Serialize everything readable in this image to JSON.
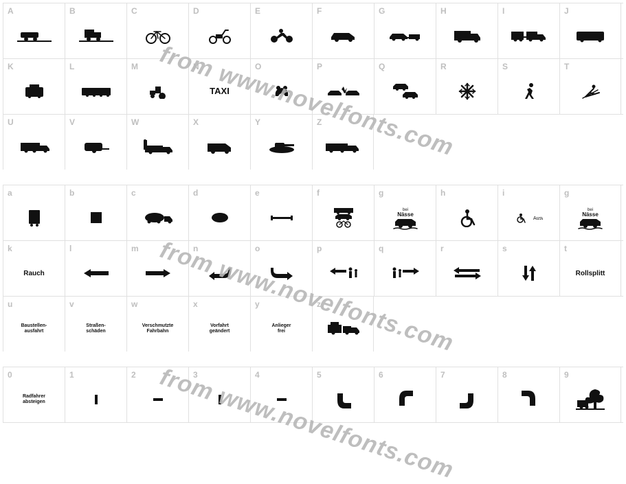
{
  "watermark_text": "from www.novelfonts.com",
  "grid": {
    "cell_border_color": "#e0e0e0",
    "key_color": "#bfbfbf",
    "glyph_color": "#111111",
    "watermark_color": "#b8b8b8"
  },
  "rows": [
    {
      "cells": [
        {
          "key": "A",
          "icon": "car-edge"
        },
        {
          "key": "B",
          "icon": "truck-edge"
        },
        {
          "key": "C",
          "icon": "bicycle"
        },
        {
          "key": "D",
          "icon": "moped"
        },
        {
          "key": "E",
          "icon": "motorcycle"
        },
        {
          "key": "F",
          "icon": "car"
        },
        {
          "key": "G",
          "icon": "car-trailer"
        },
        {
          "key": "H",
          "icon": "box-truck"
        },
        {
          "key": "I",
          "icon": "truck-trailer"
        },
        {
          "key": "J",
          "icon": "bus"
        }
      ]
    },
    {
      "cells": [
        {
          "key": "K",
          "icon": "tram"
        },
        {
          "key": "L",
          "icon": "streetcar"
        },
        {
          "key": "M",
          "icon": "tractor"
        },
        {
          "key": "N",
          "text": "TAXI",
          "textClass": "med"
        },
        {
          "key": "O",
          "icon": "frog"
        },
        {
          "key": "P",
          "icon": "crash"
        },
        {
          "key": "Q",
          "icon": "cars-passing"
        },
        {
          "key": "R",
          "icon": "snowflake"
        },
        {
          "key": "S",
          "icon": "running"
        },
        {
          "key": "T",
          "icon": "skier"
        }
      ]
    },
    {
      "cells": [
        {
          "key": "U",
          "icon": "container-truck"
        },
        {
          "key": "V",
          "icon": "caravan"
        },
        {
          "key": "W",
          "icon": "info-truck"
        },
        {
          "key": "X",
          "icon": "camper"
        },
        {
          "key": "Y",
          "icon": "tank"
        },
        {
          "key": "Z",
          "icon": "truck-long"
        }
      ]
    },
    {
      "cells": [
        {
          "key": "a",
          "icon": "truck-rear"
        },
        {
          "key": "b",
          "icon": "square"
        },
        {
          "key": "c",
          "icon": "tanker"
        },
        {
          "key": "d",
          "icon": "oval"
        },
        {
          "key": "e",
          "icon": "barrier"
        },
        {
          "key": "f",
          "icon": "vehicles-stack"
        },
        {
          "key": "g",
          "icon": "wet-sign"
        },
        {
          "key": "h",
          "icon": "wheelchair"
        },
        {
          "key": "i",
          "icon": "park-disabled"
        },
        {
          "key": "g",
          "icon": "wet-sign"
        }
      ]
    },
    {
      "cells": [
        {
          "key": "k",
          "text": "Rauch"
        },
        {
          "key": "l",
          "icon": "arrow-left"
        },
        {
          "key": "m",
          "icon": "arrow-right"
        },
        {
          "key": "n",
          "icon": "arrow-uturn-left"
        },
        {
          "key": "o",
          "icon": "arrow-uturn-right"
        },
        {
          "key": "p",
          "icon": "arrow-left-people"
        },
        {
          "key": "q",
          "icon": "arrow-right-people"
        },
        {
          "key": "r",
          "icon": "arrows-lr"
        },
        {
          "key": "s",
          "icon": "arrows-updown"
        },
        {
          "key": "t",
          "text": "Rollsplitt"
        }
      ]
    },
    {
      "cells": [
        {
          "key": "u",
          "text": "Baustellen-\nausfahrt",
          "textClass": "tiny"
        },
        {
          "key": "v",
          "text": "Straßen-\nschäden",
          "textClass": "tiny"
        },
        {
          "key": "w",
          "text": "Verschmutzte\nFahrbahn",
          "textClass": "tiny"
        },
        {
          "key": "x",
          "text": "Vorfahrt\ngeändert",
          "textClass": "tiny"
        },
        {
          "key": "y",
          "text": "Anlieger\nfrei",
          "textClass": "tiny"
        },
        {
          "key": "z",
          "icon": "truck-load"
        }
      ]
    },
    {
      "cells": [
        {
          "key": "0",
          "text": "Radfahrer\nabsteigen",
          "textClass": "tiny"
        },
        {
          "key": "1",
          "icon": "tick-v"
        },
        {
          "key": "2",
          "icon": "tick-h"
        },
        {
          "key": "3",
          "icon": "tick-v"
        },
        {
          "key": "4",
          "icon": "tick-h"
        },
        {
          "key": "5",
          "icon": "corner-br"
        },
        {
          "key": "6",
          "icon": "corner-tr"
        },
        {
          "key": "7",
          "icon": "corner-bl"
        },
        {
          "key": "8",
          "icon": "corner-tl"
        },
        {
          "key": "9",
          "icon": "tree-truck"
        }
      ]
    }
  ]
}
